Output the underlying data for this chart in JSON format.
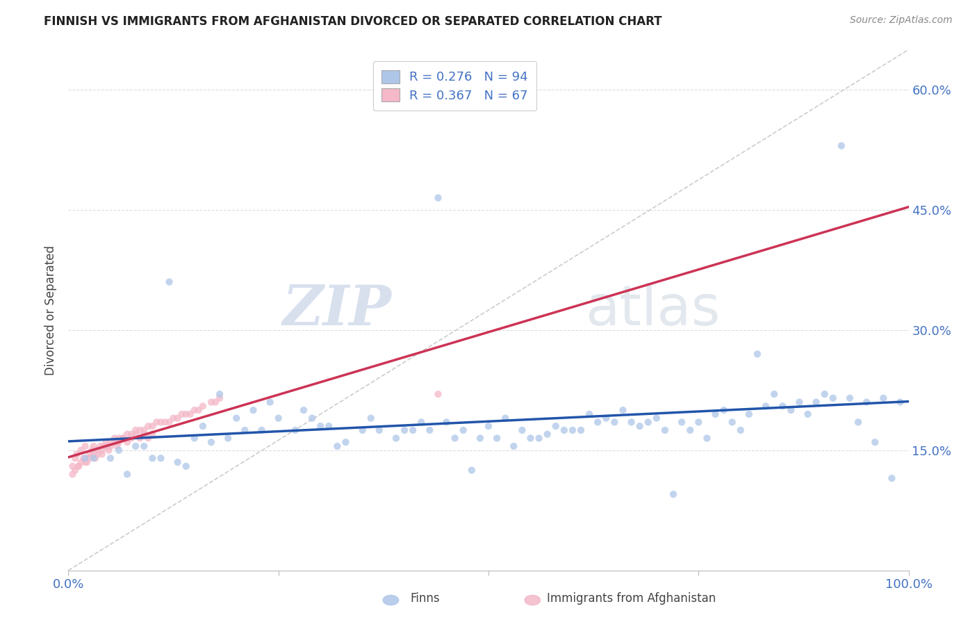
{
  "title": "FINNISH VS IMMIGRANTS FROM AFGHANISTAN DIVORCED OR SEPARATED CORRELATION CHART",
  "source": "Source: ZipAtlas.com",
  "ylabel": "Divorced or Separated",
  "watermark_zip": "ZIP",
  "watermark_atlas": "atlas",
  "legend_blue_text": "R = 0.276   N = 94",
  "legend_pink_text": "R = 0.367   N = 67",
  "legend_label_blue": "Finns",
  "legend_label_pink": "Immigrants from Afghanistan",
  "dot_color_blue": "#aec6e8",
  "dot_color_pink": "#f4b8c8",
  "dot_alpha": 0.75,
  "dot_size": 55,
  "line_color_blue": "#2255aa",
  "line_color_pink": "#cc3355",
  "dashed_line_color": "#cccccc",
  "grid_color": "#dddddd",
  "blue_x": [
    0.92,
    0.82,
    0.44,
    0.12,
    0.22,
    0.18,
    0.08,
    0.06,
    0.1,
    0.14,
    0.16,
    0.2,
    0.24,
    0.28,
    0.3,
    0.32,
    0.36,
    0.4,
    0.42,
    0.45,
    0.48,
    0.5,
    0.52,
    0.54,
    0.56,
    0.58,
    0.6,
    0.62,
    0.64,
    0.66,
    0.68,
    0.7,
    0.72,
    0.74,
    0.76,
    0.78,
    0.8,
    0.84,
    0.86,
    0.88,
    0.9,
    0.94,
    0.96,
    0.98,
    0.05,
    0.07,
    0.09,
    0.11,
    0.13,
    0.15,
    0.17,
    0.19,
    0.21,
    0.23,
    0.25,
    0.27,
    0.29,
    0.31,
    0.33,
    0.35,
    0.37,
    0.39,
    0.41,
    0.43,
    0.46,
    0.47,
    0.49,
    0.51,
    0.53,
    0.55,
    0.57,
    0.59,
    0.61,
    0.63,
    0.65,
    0.67,
    0.69,
    0.71,
    0.73,
    0.75,
    0.77,
    0.79,
    0.81,
    0.83,
    0.85,
    0.87,
    0.89,
    0.91,
    0.93,
    0.95,
    0.97,
    0.99,
    0.03,
    0.02
  ],
  "blue_y": [
    0.53,
    0.27,
    0.465,
    0.36,
    0.2,
    0.22,
    0.155,
    0.15,
    0.14,
    0.13,
    0.18,
    0.19,
    0.21,
    0.2,
    0.18,
    0.155,
    0.19,
    0.175,
    0.185,
    0.185,
    0.125,
    0.18,
    0.19,
    0.175,
    0.165,
    0.18,
    0.175,
    0.195,
    0.19,
    0.2,
    0.18,
    0.19,
    0.095,
    0.175,
    0.165,
    0.2,
    0.175,
    0.22,
    0.2,
    0.195,
    0.22,
    0.185,
    0.16,
    0.115,
    0.14,
    0.12,
    0.155,
    0.14,
    0.135,
    0.165,
    0.16,
    0.165,
    0.175,
    0.175,
    0.19,
    0.175,
    0.19,
    0.18,
    0.16,
    0.175,
    0.175,
    0.165,
    0.175,
    0.175,
    0.165,
    0.175,
    0.165,
    0.165,
    0.155,
    0.165,
    0.17,
    0.175,
    0.175,
    0.185,
    0.185,
    0.185,
    0.185,
    0.175,
    0.185,
    0.185,
    0.195,
    0.185,
    0.195,
    0.205,
    0.205,
    0.21,
    0.21,
    0.215,
    0.215,
    0.21,
    0.215,
    0.21,
    0.14,
    0.14
  ],
  "pink_x": [
    0.005,
    0.008,
    0.01,
    0.012,
    0.015,
    0.018,
    0.02,
    0.022,
    0.025,
    0.028,
    0.03,
    0.032,
    0.035,
    0.038,
    0.04,
    0.042,
    0.045,
    0.048,
    0.05,
    0.055,
    0.058,
    0.06,
    0.065,
    0.07,
    0.075,
    0.08,
    0.085,
    0.09,
    0.095,
    0.1,
    0.005,
    0.008,
    0.012,
    0.015,
    0.02,
    0.025,
    0.03,
    0.035,
    0.04,
    0.045,
    0.05,
    0.055,
    0.06,
    0.065,
    0.07,
    0.075,
    0.08,
    0.085,
    0.09,
    0.095,
    0.1,
    0.105,
    0.11,
    0.115,
    0.12,
    0.125,
    0.13,
    0.135,
    0.14,
    0.145,
    0.15,
    0.155,
    0.16,
    0.17,
    0.175,
    0.18,
    0.44
  ],
  "pink_y": [
    0.13,
    0.14,
    0.145,
    0.13,
    0.15,
    0.14,
    0.155,
    0.135,
    0.145,
    0.15,
    0.155,
    0.14,
    0.15,
    0.155,
    0.145,
    0.155,
    0.16,
    0.15,
    0.16,
    0.165,
    0.155,
    0.16,
    0.165,
    0.16,
    0.165,
    0.17,
    0.165,
    0.17,
    0.165,
    0.17,
    0.12,
    0.125,
    0.13,
    0.135,
    0.135,
    0.14,
    0.145,
    0.145,
    0.15,
    0.155,
    0.155,
    0.16,
    0.165,
    0.165,
    0.17,
    0.17,
    0.175,
    0.175,
    0.175,
    0.18,
    0.18,
    0.185,
    0.185,
    0.185,
    0.185,
    0.19,
    0.19,
    0.195,
    0.195,
    0.195,
    0.2,
    0.2,
    0.205,
    0.21,
    0.21,
    0.215,
    0.22
  ],
  "xlim": [
    0.0,
    1.0
  ],
  "ylim": [
    0.0,
    0.65
  ],
  "yticks": [
    0.15,
    0.3,
    0.45,
    0.6
  ],
  "ytick_labels": [
    "15.0%",
    "30.0%",
    "45.0%",
    "60.0%"
  ],
  "xtick_labels": [
    "0.0%",
    "100.0%"
  ],
  "title_fontsize": 12,
  "tick_fontsize": 13,
  "ylabel_fontsize": 12,
  "legend_fontsize": 13,
  "source_fontsize": 10
}
